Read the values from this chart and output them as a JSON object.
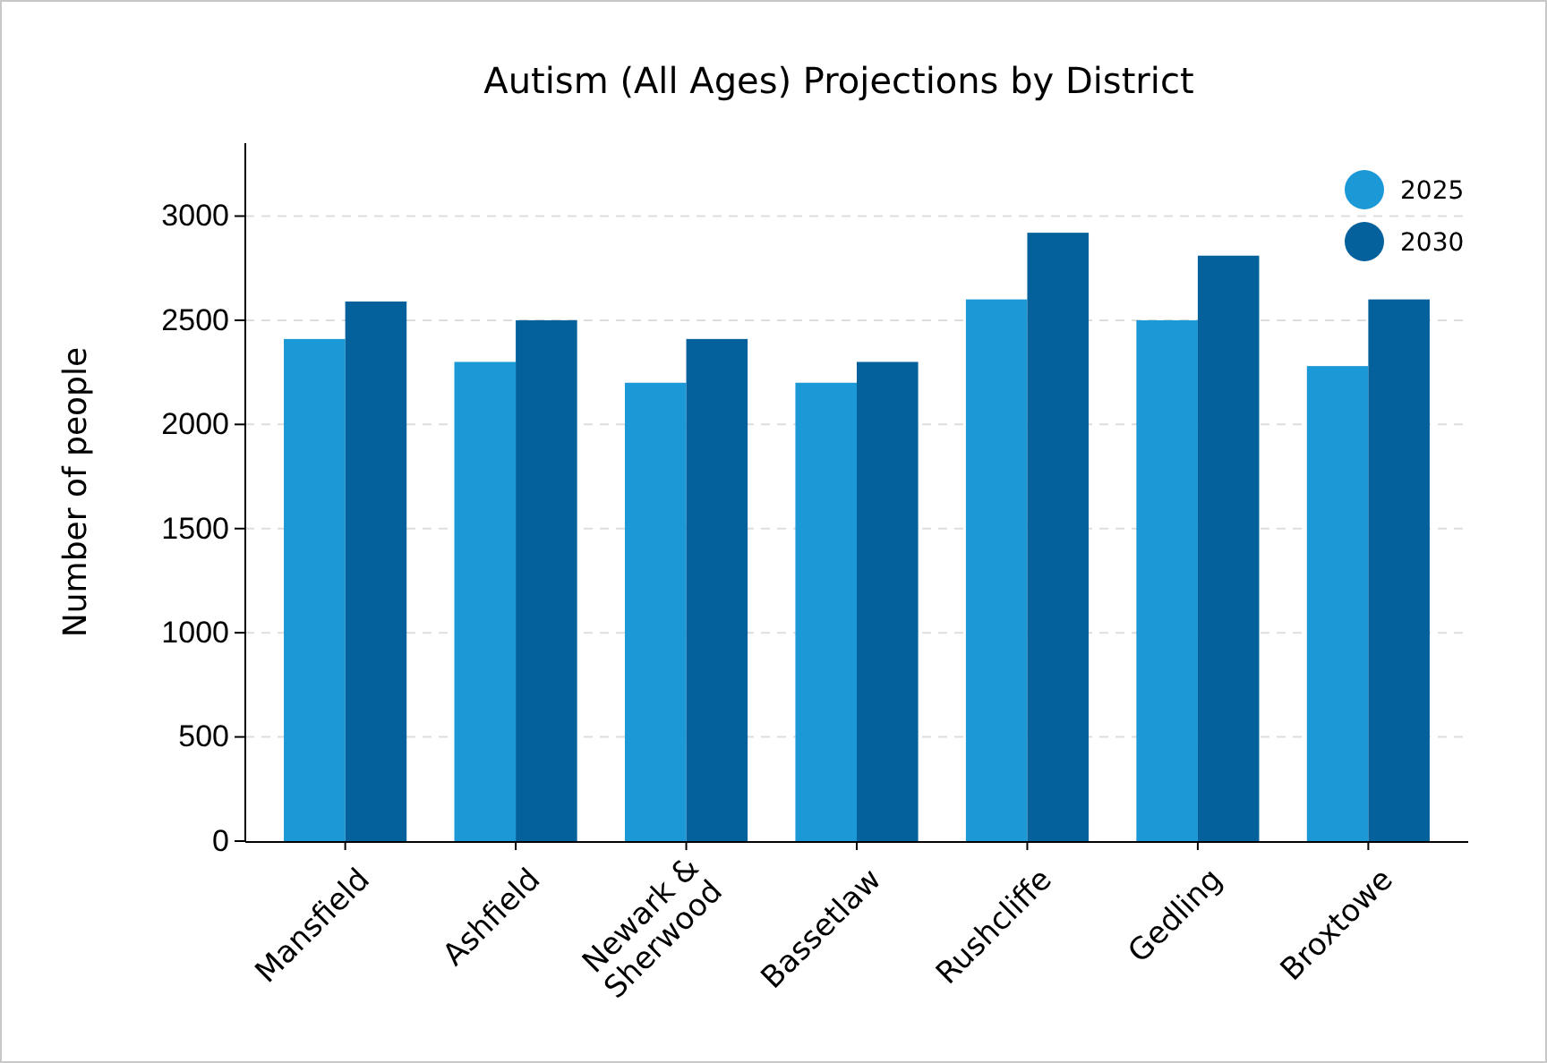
{
  "chart_data": {
    "type": "bar",
    "title": "Autism (All Ages) Projections by District",
    "ylabel": "Number of people",
    "categories": [
      "Mansfield",
      "Ashfield",
      "Newark & Sherwood",
      "Bassetlaw",
      "Rushcliffe",
      "Gedling",
      "Broxtowe"
    ],
    "series": [
      {
        "name": "2025",
        "color": "#1b98d6",
        "values": [
          2410,
          2300,
          2200,
          2200,
          2600,
          2500,
          2280
        ]
      },
      {
        "name": "2030",
        "color": "#04619c",
        "values": [
          2590,
          2500,
          2410,
          2300,
          2920,
          2810,
          2600
        ]
      }
    ],
    "ylim": [
      0,
      3350
    ],
    "yticks": [
      0,
      500,
      1000,
      1500,
      2000,
      2500,
      3000
    ],
    "grid": "y",
    "legend": "top right"
  }
}
